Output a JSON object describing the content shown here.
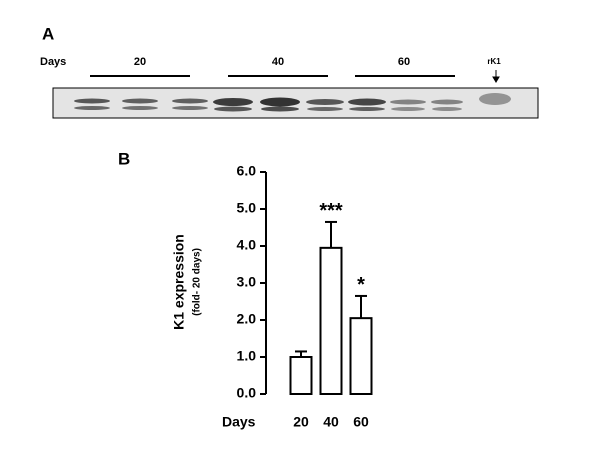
{
  "panel_a": {
    "label": "A",
    "days_label": "Days",
    "groups": [
      "20",
      "40",
      "60"
    ],
    "standard": "rK1"
  },
  "chart_data": {
    "type": "bar",
    "panel_label": "B",
    "y_label": "K1 expression",
    "y_sublabel": "(fold- 20 days)",
    "x_label": "Days",
    "categories": [
      "20",
      "40",
      "60"
    ],
    "values": [
      1.0,
      3.95,
      2.05
    ],
    "errors": [
      0.15,
      0.7,
      0.6
    ],
    "annotations": [
      null,
      "***",
      "*"
    ],
    "color": "#ffffff",
    "ylim": [
      0,
      6
    ],
    "yticks": [
      {
        "value": 0,
        "label": "0.0"
      },
      {
        "value": 1,
        "label": "1.0"
      },
      {
        "value": 2,
        "label": "2.0"
      },
      {
        "value": 3,
        "label": "3.0"
      },
      {
        "value": 4,
        "label": "4.0"
      },
      {
        "value": 5,
        "label": "5.0"
      },
      {
        "value": 6,
        "label": "6.0"
      }
    ]
  }
}
